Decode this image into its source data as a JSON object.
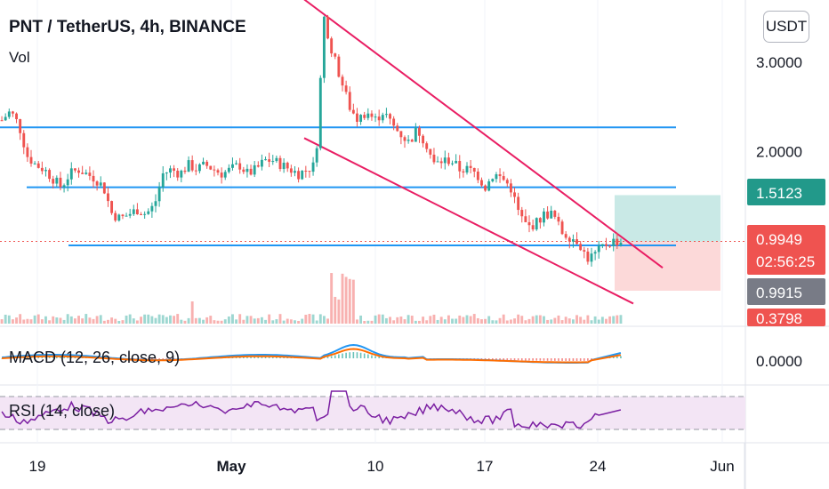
{
  "header": {
    "title": "PNT / TetherUS, 4h, BINANCE",
    "volume_label": "Vol"
  },
  "currency_button": "USDT",
  "price_axis": {
    "ticks": [
      "3.0000",
      "2.0000"
    ],
    "badges": [
      {
        "label": "1.5123",
        "color": "#22998a",
        "text_color": "#ffffff"
      },
      {
        "label": "0.9949",
        "sublabel": "02:56:25",
        "color": "#ef5350",
        "text_color": "#ffffff"
      },
      {
        "label": "0.9915",
        "color": "#787b86",
        "text_color": "#ffffff"
      },
      {
        "label": "0.3798",
        "color": "#ef5350",
        "text_color": "#ffffff"
      }
    ]
  },
  "time_axis": {
    "ticks": [
      "19",
      "May",
      "10",
      "17",
      "24",
      "Jun"
    ]
  },
  "macd": {
    "label": "MACD (12, 26, close, 9)",
    "axis_tick": "0.0000"
  },
  "rsi": {
    "label": "RSI (14, close)"
  },
  "colors": {
    "up": "#26a69a",
    "down": "#ef5350",
    "hline": "#2196f3",
    "channel": "#e91e63",
    "target_zone": "#b2dfdb",
    "stop_zone": "#fcd5d5",
    "macd_line": "#2196f3",
    "signal_line": "#ff6d00",
    "rsi_line": "#7b1fa2",
    "rsi_band": "#f3e5f5"
  },
  "chart_data": {
    "type": "candlestick",
    "title": "PNT / TetherUS, 4h, BINANCE",
    "y_ticks": [
      3.0,
      2.0
    ],
    "x_ticks": [
      "19",
      "May",
      "10",
      "17",
      "24",
      "Jun"
    ],
    "horizontal_levels": [
      2.27,
      1.6,
      0.95
    ],
    "current_price": 0.9949,
    "position_tool": {
      "target": 1.5123,
      "entry": 0.9915,
      "stop": 0.3798
    },
    "price_path": [
      2.35,
      2.45,
      2.3,
      1.95,
      1.85,
      1.8,
      1.7,
      1.6,
      1.75,
      1.8,
      1.75,
      1.7,
      1.6,
      1.3,
      1.25,
      1.3,
      1.35,
      1.3,
      1.4,
      1.75,
      1.8,
      1.75,
      1.85,
      1.8,
      1.85,
      1.8,
      1.75,
      1.8,
      1.85,
      1.75,
      1.8,
      1.9,
      1.9,
      1.85,
      1.8,
      1.75,
      1.8,
      1.85,
      3.5,
      3.1,
      2.8,
      2.5,
      2.35,
      2.45,
      2.35,
      2.45,
      2.3,
      2.2,
      2.1,
      2.25,
      2.1,
      1.85,
      1.9,
      1.9,
      1.8,
      1.8,
      1.75,
      1.6,
      1.75,
      1.7,
      1.6,
      1.3,
      1.15,
      1.2,
      1.3,
      1.3,
      1.1,
      1.05,
      1.0,
      0.8,
      0.85,
      0.95,
      1.0,
      0.99
    ]
  }
}
